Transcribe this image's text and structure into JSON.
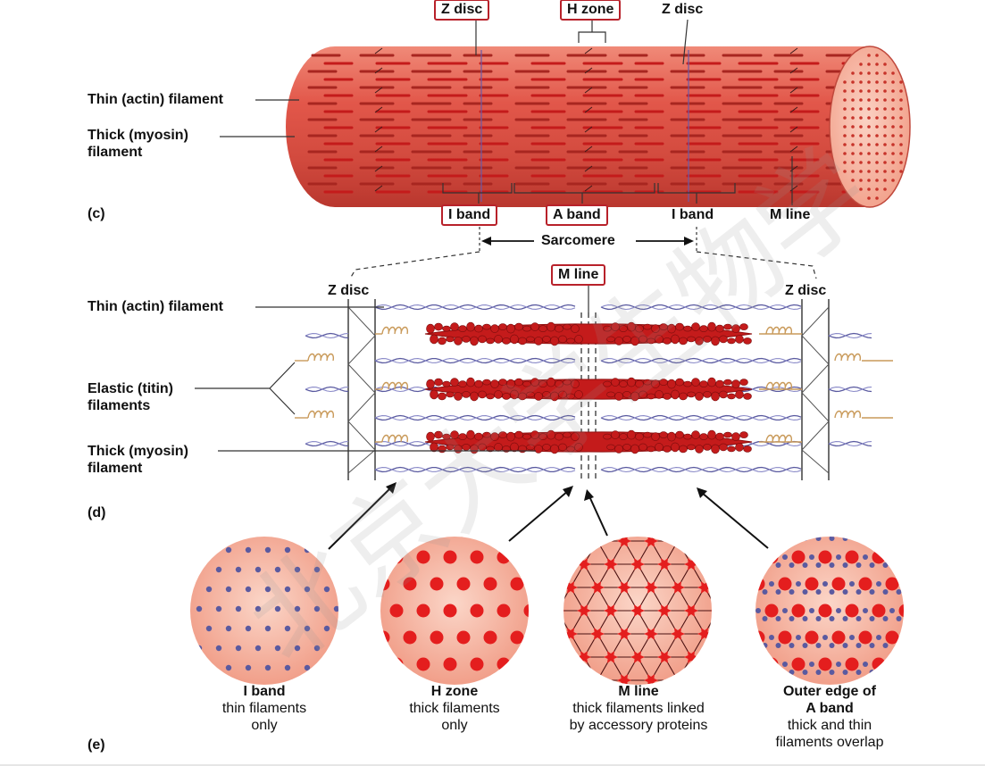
{
  "panel_c": {
    "letter": "(c)",
    "top_labels": {
      "z_disc_left": "Z disc",
      "h_zone": "H zone",
      "z_disc_right": "Z disc"
    },
    "left_labels": {
      "thin": "Thin (actin) filament",
      "thick_line1": "Thick (myosin)",
      "thick_line2": "filament"
    },
    "bottom_labels": {
      "i_band_left": "I band",
      "a_band": "A band",
      "i_band_right": "I band",
      "m_line": "M line"
    },
    "sarcomere": "Sarcomere"
  },
  "panel_d": {
    "letter": "(d)",
    "m_line": "M line",
    "z_disc_left": "Z disc",
    "z_disc_right": "Z disc",
    "left_labels": {
      "thin": "Thin (actin) filament",
      "elastic_line1": "Elastic (titin)",
      "elastic_line2": "filaments",
      "thick_line1": "Thick (myosin)",
      "thick_line2": "filament"
    }
  },
  "panel_e": {
    "letter": "(e)",
    "circles": [
      {
        "title": "I band",
        "line1": "thin filaments",
        "line2": "only"
      },
      {
        "title": "H zone",
        "line1": "thick filaments",
        "line2": "only"
      },
      {
        "title": "M line",
        "line1": "thick filaments linked",
        "line2": "by accessory proteins"
      },
      {
        "title_line1": "Outer edge of",
        "title_line2": "A band",
        "line1": "thick and thin",
        "line2": "filaments overlap"
      }
    ]
  },
  "colors": {
    "muscle": "#e0564a",
    "muscle_dark": "#b8322c",
    "thick": "#c41b1b",
    "thin": "#5a5aa0",
    "titin": "#c99a5a",
    "box_border": "#b8212a"
  },
  "watermark": "北京大学生物学"
}
